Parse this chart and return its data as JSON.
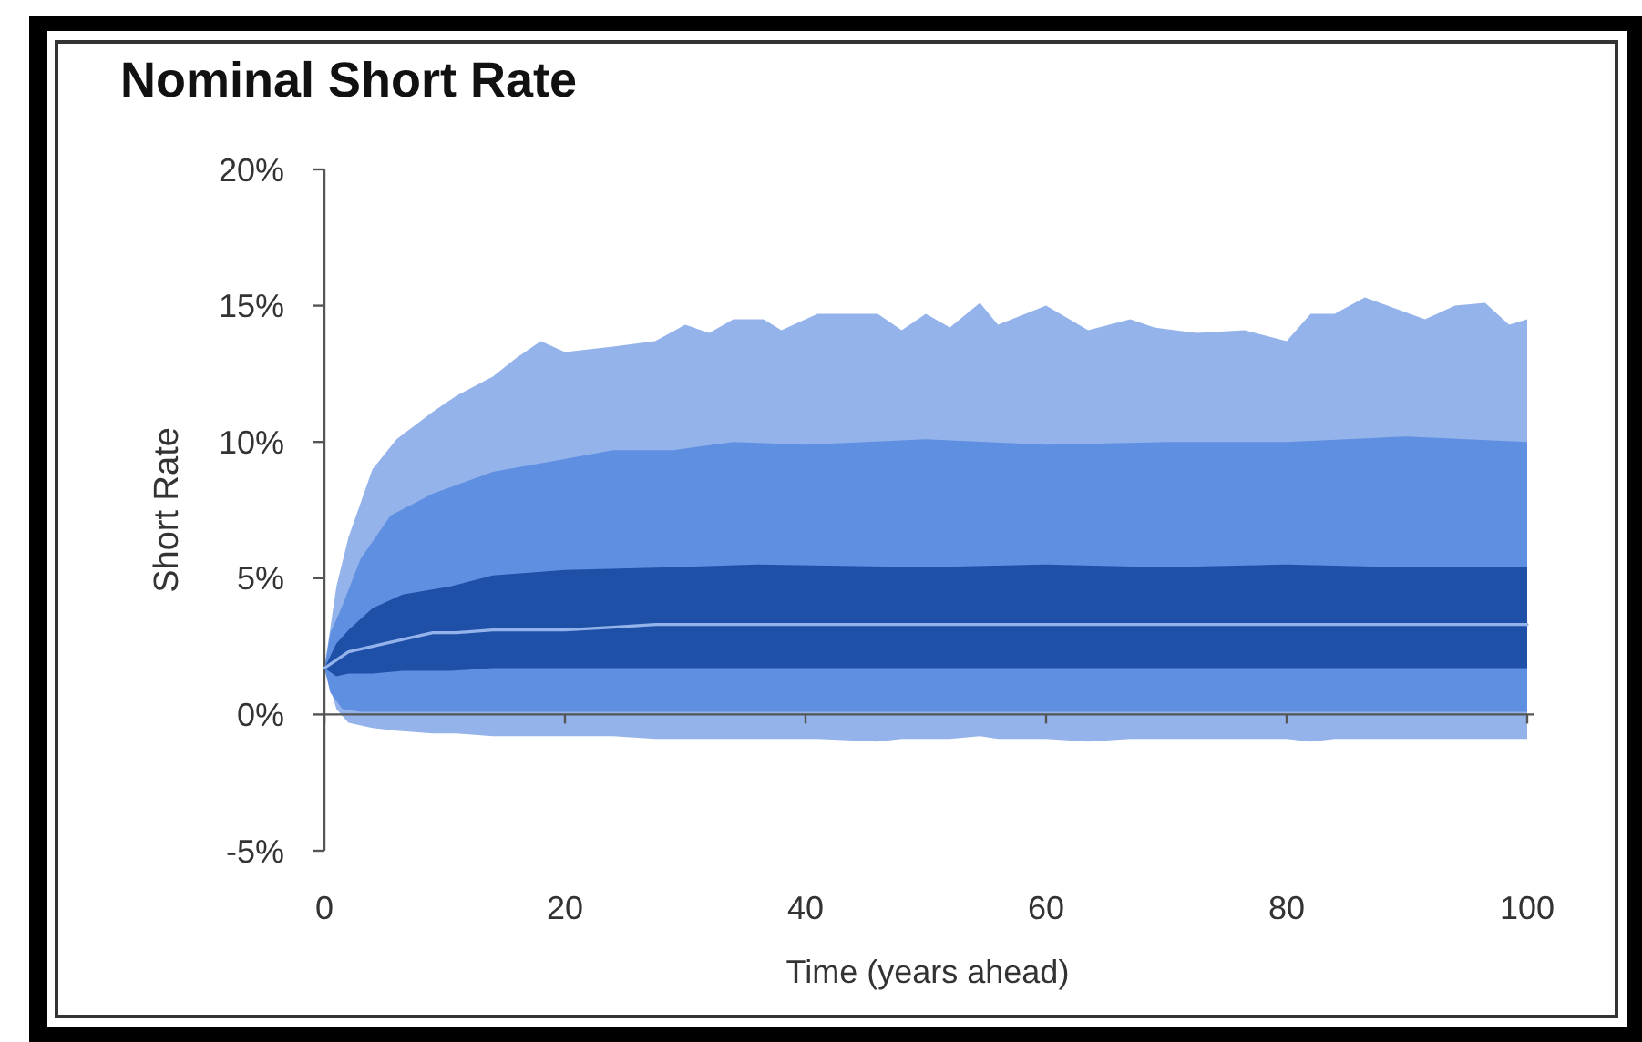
{
  "chart_data": {
    "type": "line",
    "title": "Nominal Short Rate",
    "xlabel": "Time (years ahead)",
    "ylabel": "Short Rate",
    "xlim": [
      0,
      100
    ],
    "xticks": [
      0,
      20,
      40,
      60,
      80,
      100
    ],
    "ylim": [
      -5,
      20
    ],
    "yticks": [
      {
        "value": -5,
        "label": "-5%"
      },
      {
        "value": 0,
        "label": "0%"
      },
      {
        "value": 5,
        "label": "5%"
      },
      {
        "value": 10,
        "label": "10%"
      },
      {
        "value": 15,
        "label": "15%"
      },
      {
        "value": 20,
        "label": "20%"
      }
    ],
    "series": [
      {
        "color": "#95b3eb",
        "x": [
          0,
          1,
          2,
          4,
          6,
          9,
          11,
          14,
          16,
          18,
          20,
          24,
          27.5,
          30,
          32,
          34,
          36.5,
          38,
          41,
          46,
          48,
          50,
          52,
          54.5,
          56,
          60,
          63.5,
          67,
          69,
          72.5,
          76.5,
          80,
          82,
          84,
          86.5,
          89,
          91.5,
          94,
          96.5,
          98.5,
          100
        ],
        "values": [
          1.7,
          2.0,
          2.3,
          2.5,
          2.7,
          3.0,
          3.0,
          3.1,
          3.1,
          3.1,
          3.1,
          3.2,
          3.3,
          3.3,
          3.3,
          3.3,
          3.3,
          3.3,
          3.3,
          3.3,
          3.3,
          3.3,
          3.3,
          3.3,
          3.3,
          3.3,
          3.3,
          3.3,
          3.3,
          3.3,
          3.3,
          3.3,
          3.3,
          3.3,
          3.3,
          3.3,
          3.3,
          3.3,
          3.3,
          3.3,
          3.3
        ],
        "upper": [
          1.7,
          4.7,
          6.5,
          9.0,
          10.1,
          11.1,
          11.7,
          12.4,
          13.1,
          13.7,
          13.3,
          13.5,
          13.7,
          14.3,
          14.0,
          14.5,
          14.5,
          14.1,
          14.7,
          14.7,
          14.1,
          14.7,
          14.2,
          15.1,
          14.3,
          15.0,
          14.1,
          14.5,
          14.2,
          14.0,
          14.1,
          13.7,
          14.7,
          14.7,
          15.3,
          14.9,
          14.5,
          15.0,
          15.1,
          14.3,
          14.5
        ],
        "lower": [
          1.7,
          0.2,
          -0.3,
          -0.5,
          -0.6,
          -0.7,
          -0.7,
          -0.8,
          -0.8,
          -0.8,
          -0.8,
          -0.8,
          -0.9,
          -0.9,
          -0.9,
          -0.9,
          -0.9,
          -0.9,
          -0.9,
          -1.0,
          -0.9,
          -0.9,
          -0.9,
          -0.8,
          -0.9,
          -0.9,
          -1.0,
          -0.9,
          -0.9,
          -0.9,
          -0.9,
          -0.9,
          -1.0,
          -0.9,
          -0.9,
          -0.9,
          -0.9,
          -0.9,
          -0.9,
          -0.9,
          -0.9
        ]
      },
      {
        "color": "#5f8fe1",
        "x": [
          0,
          0.5,
          1.5,
          3,
          5.5,
          9,
          14,
          19,
          24,
          29,
          34,
          40,
          50,
          60,
          70,
          80,
          90,
          100
        ],
        "values": [
          null,
          null,
          null,
          null,
          null,
          null,
          null,
          null,
          null,
          null,
          null,
          null,
          null,
          null,
          null,
          null,
          null,
          null
        ],
        "upper": [
          1.7,
          3.0,
          4.0,
          5.7,
          7.3,
          8.1,
          8.9,
          9.3,
          9.7,
          9.7,
          10.0,
          9.9,
          10.1,
          9.9,
          10.0,
          10.0,
          10.2,
          10.0
        ],
        "lower": [
          1.7,
          0.8,
          0.2,
          0.1,
          0.1,
          0.1,
          0.1,
          0.1,
          0.1,
          0.1,
          0.1,
          0.1,
          0.1,
          0.1,
          0.1,
          0.1,
          0.1,
          0.1
        ]
      },
      {
        "color": "#1f50a8",
        "x": [
          0,
          1,
          2,
          4,
          6.5,
          10.5,
          14,
          20,
          29,
          36,
          50,
          60,
          70,
          80,
          90,
          100
        ],
        "values": [
          null,
          null,
          null,
          null,
          null,
          null,
          null,
          null,
          null,
          null,
          null,
          null,
          null,
          null,
          null,
          null
        ],
        "upper": [
          1.7,
          2.6,
          3.1,
          3.9,
          4.4,
          4.7,
          5.1,
          5.3,
          5.4,
          5.5,
          5.4,
          5.5,
          5.4,
          5.5,
          5.4,
          5.4
        ],
        "lower": [
          1.7,
          1.4,
          1.5,
          1.5,
          1.6,
          1.6,
          1.7,
          1.7,
          1.7,
          1.7,
          1.7,
          1.7,
          1.7,
          1.7,
          1.7,
          1.7
        ]
      }
    ]
  }
}
